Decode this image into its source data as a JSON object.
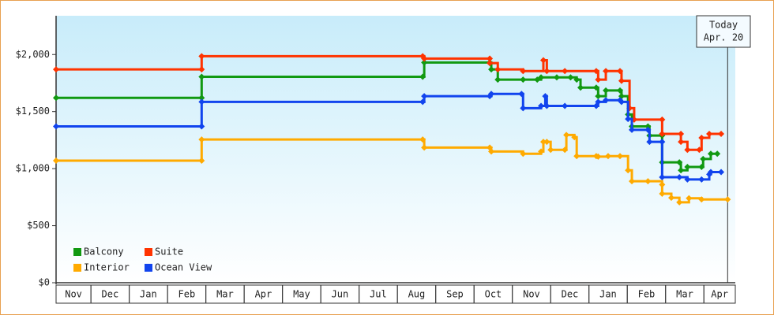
{
  "chart_data": {
    "type": "step-line",
    "categories": [
      "Nov",
      "Dec",
      "Jan",
      "Feb",
      "Mar",
      "Apr",
      "May",
      "Jun",
      "Jul",
      "Aug",
      "Sep",
      "Oct",
      "Nov",
      "Dec",
      "Jan",
      "Feb",
      "Mar",
      "Apr"
    ],
    "xlim": [
      0.09,
      17.82
    ],
    "ylim": [
      0,
      2340
    ],
    "yticks": [
      {
        "value": 0,
        "label": "$0"
      },
      {
        "value": 500,
        "label": "$500"
      },
      {
        "value": 1000,
        "label": "$1,000"
      },
      {
        "value": 1500,
        "label": "$1,500"
      },
      {
        "value": 2000,
        "label": "$2,000"
      }
    ],
    "annotation": {
      "text": [
        "Today",
        "Apr. 20"
      ],
      "x": 17.62
    },
    "series": [
      {
        "name": "Balcony",
        "color": "#119911",
        "x": [
          0.09,
          3.89,
          3.89,
          9.66,
          9.7,
          11.41,
          11.45,
          11.62,
          12.28,
          12.65,
          12.75,
          13.16,
          13.52,
          13.68,
          13.78,
          14.19,
          14.24,
          14.44,
          14.81,
          14.85,
          15.02,
          15.12,
          15.54,
          15.58,
          15.91,
          15.91,
          16.36,
          16.4,
          16.57,
          16.94,
          16.98,
          17.18,
          17.35
        ],
        "values": [
          1620,
          1620,
          1805,
          1805,
          1930,
          1930,
          1870,
          1780,
          1780,
          1780,
          1800,
          1800,
          1800,
          1780,
          1710,
          1710,
          1635,
          1685,
          1685,
          1635,
          1475,
          1370,
          1370,
          1290,
          1290,
          1055,
          1055,
          985,
          1015,
          1015,
          1085,
          1130,
          1130
        ]
      },
      {
        "name": "Suite",
        "color": "#ff3300",
        "x": [
          0.09,
          3.89,
          3.89,
          9.66,
          9.7,
          11.41,
          11.41,
          11.62,
          12.28,
          12.81,
          12.9,
          13.37,
          14.19,
          14.24,
          14.44,
          14.81,
          14.85,
          15.06,
          15.18,
          15.91,
          15.91,
          16.4,
          16.4,
          16.57,
          16.88,
          16.94,
          17.14,
          17.45
        ],
        "values": [
          1870,
          1870,
          1985,
          1985,
          1965,
          1965,
          1925,
          1870,
          1855,
          1950,
          1855,
          1855,
          1855,
          1780,
          1855,
          1855,
          1770,
          1530,
          1430,
          1430,
          1305,
          1305,
          1235,
          1165,
          1165,
          1270,
          1305,
          1305
        ]
      },
      {
        "name": "Interior",
        "color": "#ffaa00",
        "x": [
          0.09,
          3.89,
          3.89,
          9.66,
          9.7,
          11.41,
          11.45,
          12.28,
          12.75,
          12.81,
          12.9,
          13.0,
          13.37,
          13.41,
          13.62,
          13.68,
          14.19,
          14.24,
          14.5,
          14.81,
          15.02,
          15.12,
          15.54,
          15.91,
          15.91,
          16.15,
          16.36,
          16.61,
          16.94,
          17.62
        ],
        "values": [
          1070,
          1070,
          1255,
          1255,
          1185,
          1185,
          1150,
          1130,
          1150,
          1235,
          1235,
          1165,
          1165,
          1295,
          1275,
          1110,
          1110,
          1105,
          1110,
          1110,
          985,
          890,
          890,
          860,
          780,
          745,
          705,
          740,
          730,
          730
        ]
      },
      {
        "name": "Ocean View",
        "color": "#1144ee",
        "x": [
          0.09,
          3.89,
          3.89,
          9.66,
          9.7,
          11.41,
          11.45,
          12.24,
          12.28,
          12.75,
          12.86,
          12.9,
          13.37,
          14.19,
          14.24,
          14.44,
          14.81,
          14.85,
          15.02,
          15.12,
          15.54,
          15.58,
          15.91,
          15.91,
          16.36,
          16.57,
          16.94,
          17.14,
          17.18,
          17.45
        ],
        "values": [
          1370,
          1370,
          1585,
          1585,
          1635,
          1635,
          1655,
          1655,
          1530,
          1550,
          1635,
          1550,
          1550,
          1550,
          1585,
          1600,
          1600,
          1585,
          1435,
          1340,
          1340,
          1235,
          1235,
          925,
          925,
          905,
          905,
          950,
          970,
          970
        ]
      }
    ]
  }
}
